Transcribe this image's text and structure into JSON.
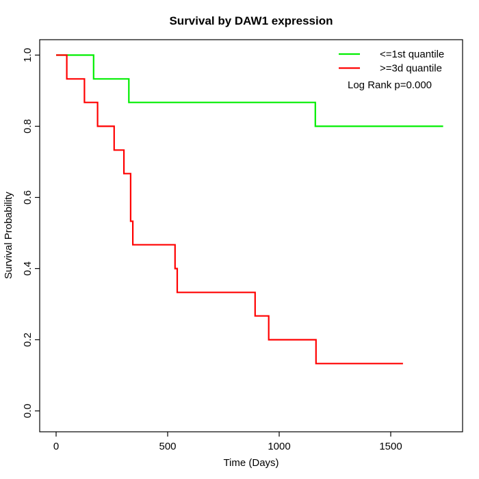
{
  "title": "Survival by DAW1 expression",
  "x_axis": {
    "label": "Time (Days)",
    "ticks": [
      "0",
      "500",
      "1000",
      "1500"
    ]
  },
  "y_axis": {
    "label": "Survival Probability",
    "ticks": [
      "0.0",
      "0.2",
      "0.4",
      "0.6",
      "0.8",
      "1.0"
    ]
  },
  "annotation": "Log Rank p=0.000",
  "chart_data": {
    "type": "line",
    "variant": "kaplan-meier-step",
    "title": "Survival by DAW1 expression",
    "xlabel": "Time (Days)",
    "ylabel": "Survival Probability",
    "x_ticks": [
      0,
      500,
      1000,
      1500
    ],
    "y_ticks": [
      0.0,
      0.2,
      0.4,
      0.6,
      0.8,
      1.0
    ],
    "xlim": [
      -70,
      1830
    ],
    "ylim": [
      -0.04,
      1.04
    ],
    "grid": false,
    "legend_position": "top-right",
    "annotation": "Log Rank p=0.000",
    "series": [
      {
        "name": "<=1st quantile",
        "color": "#00EE00",
        "x": [
          0,
          168,
          326,
          1162,
          1735
        ],
        "y": [
          1.0,
          0.933,
          0.867,
          0.8,
          0.8
        ]
      },
      {
        "name": ">=3d quantile",
        "color": "#FF0000",
        "x": [
          0,
          48,
          127,
          186,
          260,
          304,
          334,
          344,
          533,
          543,
          892,
          953,
          1165,
          1555
        ],
        "y": [
          1.0,
          0.933,
          0.867,
          0.8,
          0.733,
          0.667,
          0.533,
          0.467,
          0.4,
          0.333,
          0.267,
          0.2,
          0.133,
          0.133
        ]
      }
    ]
  }
}
